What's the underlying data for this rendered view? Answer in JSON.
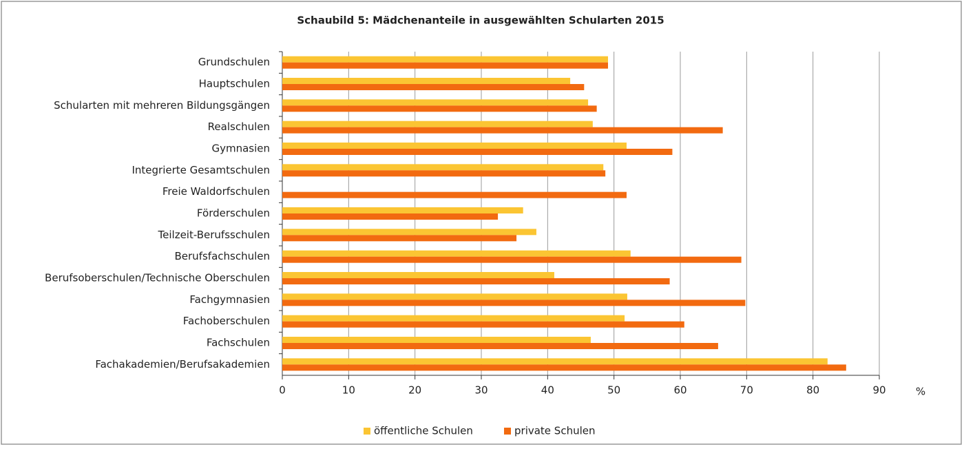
{
  "chart_data": {
    "type": "hbar",
    "title": "Schaubild 5: Mädchenanteile in ausgewählten Schularten 2015",
    "x_label": "%",
    "categories": [
      "Grundschulen",
      "Hauptschulen",
      "Schularten mit mehreren Bildungsgängen",
      "Realschulen",
      "Gymnasien",
      "Integrierte Gesamtschulen",
      "Freie Waldorfschulen",
      "Förderschulen",
      "Teilzeit-Berufsschulen",
      "Berufsfachschulen",
      "Berufsoberschulen/Technische Oberschulen",
      "Fachgymnasien",
      "Fachoberschulen",
      "Fachschulen",
      "Fachakademien/Berufsakademien"
    ],
    "series": [
      {
        "name": "öffentliche Schulen",
        "color": "#fbc533",
        "values": [
          49.1,
          43.4,
          46.1,
          46.8,
          51.9,
          48.4,
          null,
          36.3,
          38.3,
          52.5,
          41.0,
          52.0,
          51.6,
          46.5,
          82.2
        ]
      },
      {
        "name": "private Schulen",
        "color": "#f26a10",
        "values": [
          49.1,
          45.5,
          47.4,
          66.4,
          58.8,
          48.7,
          51.9,
          32.5,
          35.3,
          69.2,
          58.4,
          69.8,
          60.6,
          65.7,
          85.0
        ]
      }
    ],
    "xlim": [
      0,
      90
    ],
    "xticks": [
      0,
      10,
      20,
      30,
      40,
      50,
      60,
      70,
      80,
      90
    ],
    "grid": true,
    "legend": "bottom"
  }
}
